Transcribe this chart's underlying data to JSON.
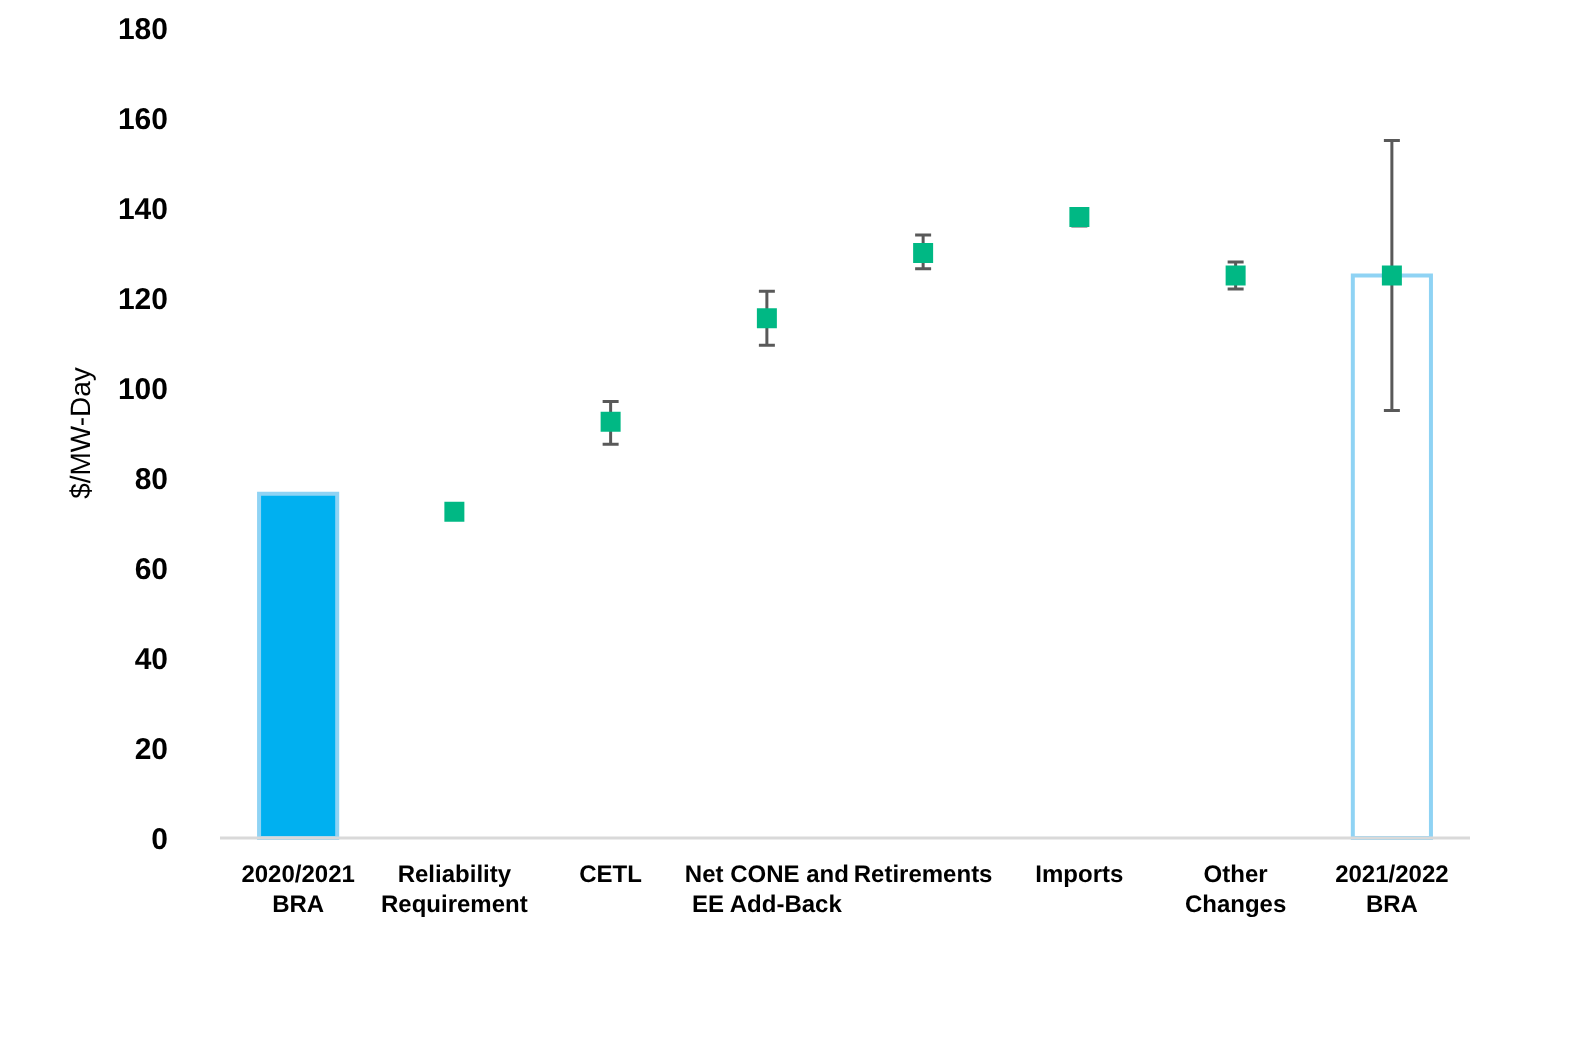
{
  "chart_data": {
    "type": "bar",
    "ylabel": "$/MW-Day",
    "categories": [
      "2020/2021\nBRA",
      "Reliability\nRequirement",
      "CETL",
      "Net CONE and\nEE Add-Back",
      "Retirements",
      "Imports",
      "Other\nChanges",
      "2021/2022\nBRA"
    ],
    "series": [
      {
        "type": "bar",
        "color": "#00b0f0",
        "values": [
          76.5,
          null,
          null,
          null,
          null,
          null,
          null,
          null
        ]
      },
      {
        "type": "bar",
        "color": "#ffffff",
        "values": [
          null,
          null,
          null,
          null,
          null,
          null,
          null,
          125
        ]
      },
      {
        "type": "scatter",
        "color": "#00b884",
        "x": [
          "Reliability\nRequirement",
          "CETL",
          "Net CONE and\nEE Add-Back",
          "Retirements",
          "Imports",
          "Other\nChanges",
          "2021/2022\nBRA"
        ],
        "values": [
          72.5,
          92.5,
          115.5,
          130,
          138,
          125,
          125
        ],
        "errors": [
          [
            72.5,
            73.5
          ],
          [
            87.5,
            97
          ],
          [
            109.5,
            121.5
          ],
          [
            126.5,
            134
          ],
          [
            136,
            139.5
          ],
          [
            122,
            128
          ],
          [
            95,
            155
          ]
        ]
      }
    ],
    "ylim": [
      0,
      180
    ],
    "yticks": [
      0,
      20,
      40,
      60,
      80,
      100,
      120,
      140,
      160,
      180
    ],
    "grid": false,
    "legend": false,
    "marker": "square"
  }
}
